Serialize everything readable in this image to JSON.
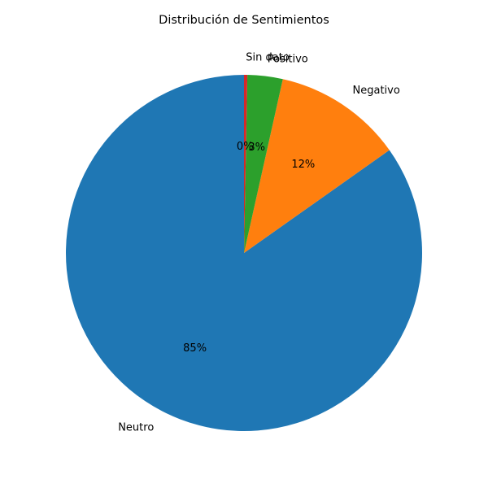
{
  "chart_data": {
    "type": "pie",
    "title": "Distribución de Sentimientos",
    "categories": [
      "Neutro",
      "Negativo",
      "Positivo",
      "Sin dato"
    ],
    "values": [
      84.8,
      11.7,
      3.2,
      0.3
    ],
    "value_labels": [
      "85%",
      "12%",
      "3%",
      "0%"
    ],
    "colors": [
      "#1f77b4",
      "#ff7f0e",
      "#2ca02c",
      "#d62728"
    ],
    "start_angle_deg": 90,
    "direction": "counterclockwise",
    "legend": "none"
  }
}
